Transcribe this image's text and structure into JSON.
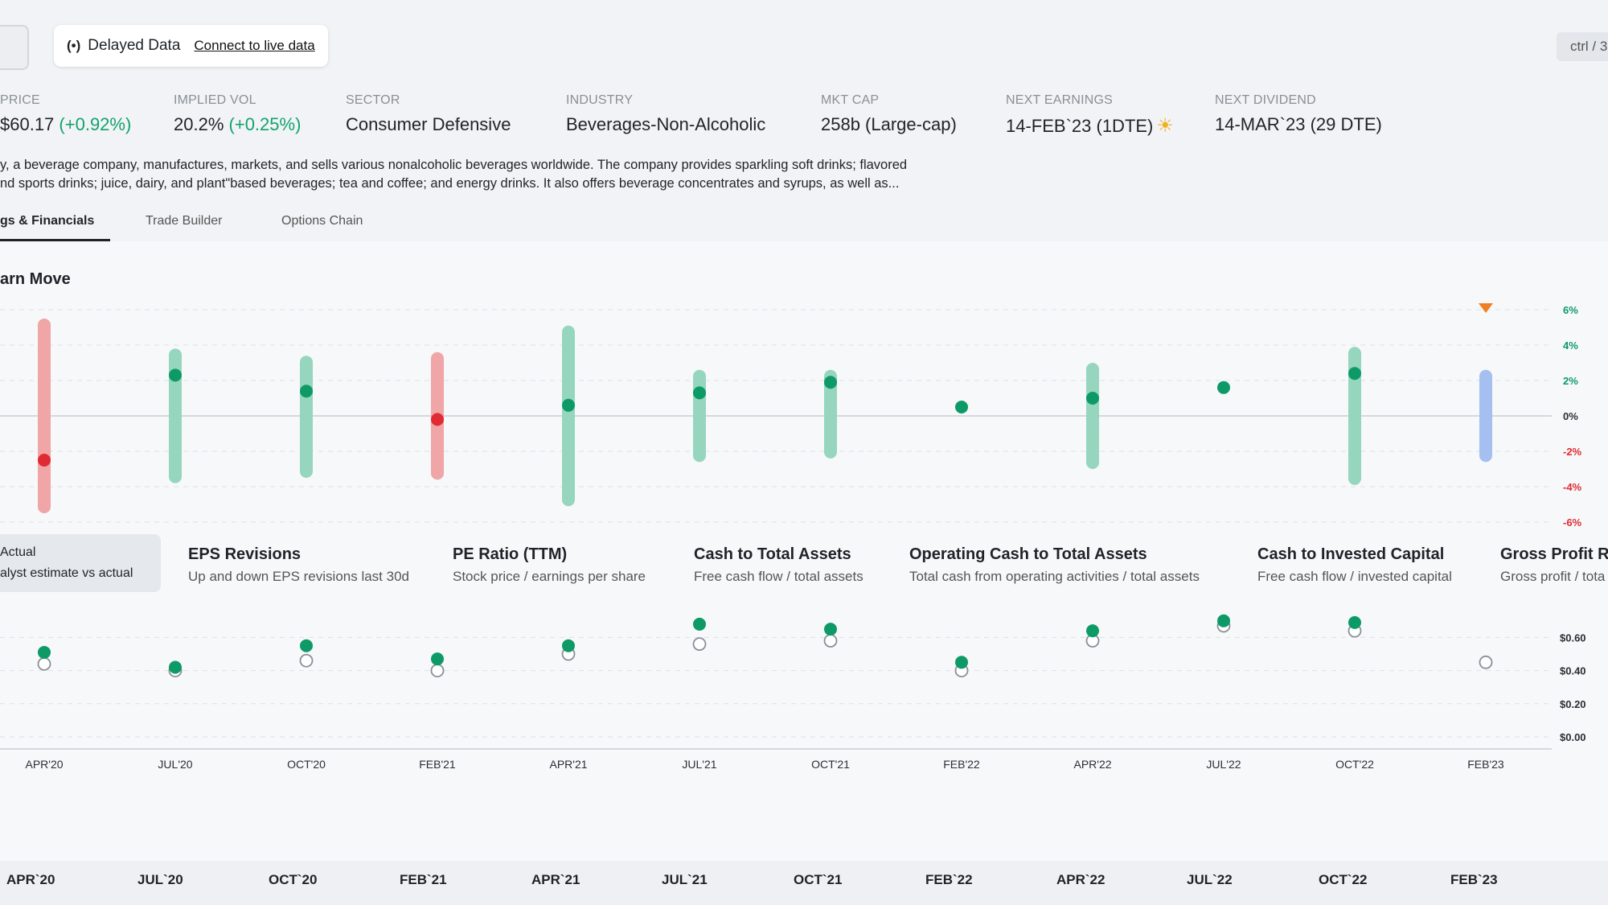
{
  "topbar": {
    "delayed_label": "Delayed Data",
    "connect_link": "Connect to live data",
    "shortcut": "ctrl / 3"
  },
  "stats": [
    {
      "label": "PRICE",
      "value": "$60.17",
      "change": "(+0.92%)"
    },
    {
      "label": "IMPLIED VOL",
      "value": "20.2%",
      "change": "(+0.25%)"
    },
    {
      "label": "SECTOR",
      "value": "Consumer Defensive",
      "change": ""
    },
    {
      "label": "INDUSTRY",
      "value": "Beverages-Non-Alcoholic",
      "change": ""
    },
    {
      "label": "MKT CAP",
      "value": "258b (Large-cap)",
      "change": ""
    },
    {
      "label": "NEXT EARNINGS",
      "value": "14-FEB`23 (1DTE)",
      "change": ""
    },
    {
      "label": "NEXT DIVIDEND",
      "value": "14-MAR`23 (29 DTE)",
      "change": ""
    }
  ],
  "description": {
    "line1": "y, a beverage company, manufactures, markets, and sells various nonalcoholic beverages worldwide. The company provides sparkling soft drinks; flavored",
    "line2": "nd sports drinks; juice, dairy, and plant\"based beverages; tea and coffee; and energy drinks. It also offers beverage concentrates and syrups, as well as..."
  },
  "tabs": [
    {
      "label": "gs & Financials",
      "active": true
    },
    {
      "label": "Trade Builder",
      "active": false
    },
    {
      "label": "Options Chain",
      "active": false
    }
  ],
  "earn_move_title": "arn Move",
  "colors": {
    "green": "#0e9a66",
    "green_bar": "#96d6bf",
    "red": "#e02b35",
    "red_bar": "#f0a5a7",
    "blue_bar": "#a4bff0",
    "marker": "#f07e22"
  },
  "chart_data": [
    {
      "type": "bar",
      "title": "arn Move",
      "categories": [
        "APR'20",
        "JUL'20",
        "OCT'20",
        "FEB'21",
        "APR'21",
        "JUL'21",
        "OCT'21",
        "FEB'22",
        "APR'22",
        "JUL'22",
        "OCT'22",
        "FEB'23"
      ],
      "series": [
        {
          "low": [
            -5.5,
            -3.8,
            -3.5,
            -3.6,
            -5.1,
            -2.6,
            -2.4,
            null,
            -3.0,
            null,
            -3.9,
            -2.6
          ],
          "high": [
            5.5,
            3.8,
            3.4,
            3.6,
            5.1,
            2.6,
            2.6,
            null,
            3.0,
            null,
            3.9,
            2.6
          ],
          "actual": [
            -2.5,
            2.3,
            1.4,
            -0.2,
            0.6,
            1.3,
            1.9,
            0.5,
            1.0,
            1.6,
            2.4,
            null
          ],
          "outcome": [
            "down",
            "up",
            "up",
            "down",
            "down",
            "up",
            "up",
            "up",
            "up",
            "up",
            "up",
            "upcoming"
          ]
        }
      ],
      "ylim": [
        -6,
        6
      ],
      "yticks": [
        "6%",
        "4%",
        "2%",
        "0%",
        "-2%",
        "-4%",
        "-6%"
      ],
      "grid": true
    },
    {
      "type": "scatter",
      "categories": [
        "APR'20",
        "JUL'20",
        "OCT'20",
        "FEB'21",
        "APR'21",
        "JUL'21",
        "OCT'21",
        "FEB'22",
        "APR'22",
        "JUL'22",
        "OCT'22",
        "FEB'23"
      ],
      "series": [
        {
          "values": [
            0.51,
            0.42,
            0.55,
            0.47,
            0.55,
            0.68,
            0.65,
            0.45,
            0.64,
            0.7,
            0.69,
            null
          ]
        },
        {
          "values": [
            0.44,
            0.4,
            0.46,
            0.4,
            0.5,
            0.56,
            0.58,
            0.4,
            0.58,
            0.67,
            0.64,
            0.45
          ]
        }
      ],
      "ylim": [
        0,
        0.7
      ],
      "yticks": [
        "$0.60",
        "$0.40",
        "$0.20",
        "$0.00"
      ],
      "grid": true
    }
  ],
  "metrics": [
    {
      "title": "Actual",
      "subtitle": "alyst estimate vs actual"
    },
    {
      "title": "EPS Revisions",
      "subtitle": "Up and down EPS revisions last 30d"
    },
    {
      "title": "PE Ratio (TTM)",
      "subtitle": "Stock price / earnings per share"
    },
    {
      "title": "Cash to Total Assets",
      "subtitle": "Free cash flow / total assets"
    },
    {
      "title": "Operating Cash to Total Assets",
      "subtitle": "Total cash from operating activities / total assets"
    },
    {
      "title": "Cash to Invested Capital",
      "subtitle": "Free cash flow / invested capital"
    },
    {
      "title": "Gross Profit Ra",
      "subtitle": "Gross profit / tota"
    }
  ],
  "bottom_axis": [
    "APR`20",
    "JUL`20",
    "OCT`20",
    "FEB`21",
    "APR`21",
    "JUL`21",
    "OCT`21",
    "FEB`22",
    "APR`22",
    "JUL`22",
    "OCT`22",
    "FEB`23"
  ]
}
